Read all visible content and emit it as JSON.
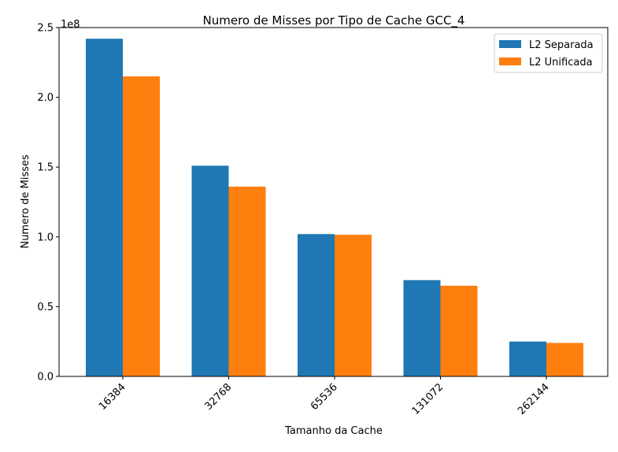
{
  "chart_data": {
    "type": "bar",
    "title": "Numero de Misses por Tipo de Cache GCC_4",
    "xlabel": "Tamanho da Cache",
    "ylabel": "Numero de Misses",
    "y_offset_text": "1e8",
    "y_scale": 100000000,
    "ylim": [
      0,
      250000000
    ],
    "yticks": [
      0,
      50000000,
      100000000,
      150000000,
      200000000,
      250000000
    ],
    "ytick_labels": [
      "0.0",
      "0.5",
      "1.0",
      "1.5",
      "2.0",
      "2.5"
    ],
    "categories": [
      "16384",
      "32768",
      "65536",
      "131072",
      "262144"
    ],
    "series": [
      {
        "name": "L2 Separada",
        "color": "#1f77b4",
        "values": [
          242000000,
          151000000,
          102000000,
          69000000,
          25000000
        ]
      },
      {
        "name": "L2 Unificada",
        "color": "#ff7f0e",
        "values": [
          215000000,
          136000000,
          101500000,
          65000000,
          24000000
        ]
      }
    ],
    "legend_position": "top-right",
    "grid": false,
    "xtick_rotation": 45
  }
}
